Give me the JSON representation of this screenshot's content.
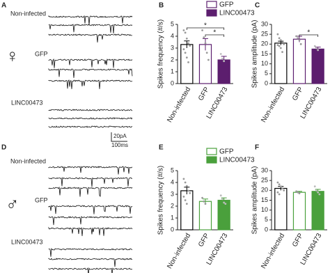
{
  "panels": [
    "A",
    "B",
    "C",
    "D",
    "E",
    "F"
  ],
  "trace_labels": [
    "Non-infected",
    "GFP",
    "LINC00473",
    "Non-infected",
    "GFP",
    "LINC00473"
  ],
  "sex_symbols": [
    "♀",
    "♂"
  ],
  "scale_bar": {
    "y": "20pA",
    "x": "100ms"
  },
  "chart_data": [
    {
      "type": "bar",
      "y_label": "Spikes frequency (#/s)",
      "categories": [
        "Non-infected",
        "GFP",
        "LINC00473"
      ],
      "values": [
        3.3,
        3.3,
        2.0
      ],
      "errors": [
        0.3,
        0.5,
        0.3
      ],
      "points": [
        [
          4.5,
          4.3,
          3.8,
          3.4,
          3.2,
          2.9,
          2.6,
          2.2,
          1.8
        ],
        [
          4.5,
          3.9,
          3.4,
          2.6,
          2.0
        ],
        [
          2.5,
          2.1,
          1.9
        ]
      ],
      "fills": [
        "#ffffff",
        "#ffffff",
        "#5c1e6e"
      ],
      "edges": [
        "#000000",
        "#5c1e6e",
        "#5c1e6e"
      ],
      "legend": [
        {
          "name": "GFP",
          "fill": "#ffffff",
          "edge": "#5c1e6e"
        },
        {
          "name": "LINC00473",
          "fill": "#5c1e6e",
          "edge": "#5c1e6e"
        }
      ],
      "brackets": [
        {
          "label": "*",
          "between": [
            "Non-infected",
            "LINC00473"
          ]
        },
        {
          "label": "*",
          "between": [
            "GFP",
            "LINC00473"
          ]
        }
      ],
      "ylim": [
        0,
        5
      ],
      "yticks": [
        0,
        1,
        2,
        3,
        4,
        5
      ]
    },
    {
      "type": "bar",
      "y_label": "Spikes amplitude (pA)",
      "categories": [
        "Non-infected",
        "GFP",
        "LINC00473"
      ],
      "values": [
        20.5,
        22.5,
        17.5
      ],
      "errors": [
        1,
        1.5,
        1
      ],
      "points": [
        [
          25,
          23,
          22,
          21,
          20,
          19.5,
          19,
          18,
          16
        ],
        [
          24,
          23,
          22,
          20
        ],
        [
          19,
          18,
          17
        ]
      ],
      "fills": [
        "#ffffff",
        "#ffffff",
        "#5c1e6e"
      ],
      "edges": [
        "#000000",
        "#5c1e6e",
        "#5c1e6e"
      ],
      "brackets": [
        {
          "label": "*",
          "between": [
            "GFP",
            "LINC00473"
          ]
        }
      ],
      "ylim": [
        0,
        30
      ],
      "yticks": [
        0,
        5,
        10,
        15,
        20,
        25,
        30
      ]
    },
    {
      "type": "bar",
      "y_label": "Spikes frequency (#/s)",
      "categories": [
        "Non-infected",
        "GFP",
        "LINC00473"
      ],
      "values": [
        3.3,
        2.4,
        2.5
      ],
      "errors": [
        0.3,
        0.2,
        0.2
      ],
      "points": [
        [
          4.3,
          4.0,
          3.7,
          3.3,
          3.1,
          2.8,
          2.5,
          2.2
        ],
        [
          2.7,
          2.4,
          2.2
        ],
        [
          2.9,
          2.6,
          2.3,
          2.2
        ]
      ],
      "fills": [
        "#ffffff",
        "#ffffff",
        "#4aa03c"
      ],
      "edges": [
        "#000000",
        "#4aa03c",
        "#4aa03c"
      ],
      "legend": [
        {
          "name": "GFP",
          "fill": "#ffffff",
          "edge": "#4aa03c"
        },
        {
          "name": "LINC00473",
          "fill": "#4aa03c",
          "edge": "#4aa03c"
        }
      ],
      "ylim": [
        0,
        5
      ],
      "yticks": [
        0,
        1,
        2,
        3,
        4,
        5
      ]
    },
    {
      "type": "bar",
      "y_label": "Spikes amplitude (pA)",
      "categories": [
        "Non-infected",
        "GFP",
        "LINC00473"
      ],
      "values": [
        21,
        19,
        19.5
      ],
      "errors": [
        1,
        0.5,
        1
      ],
      "points": [
        [
          24,
          23,
          22,
          21,
          20,
          19,
          18
        ],
        [
          19.5,
          19,
          18.5
        ],
        [
          22,
          20,
          19,
          18
        ]
      ],
      "fills": [
        "#ffffff",
        "#ffffff",
        "#4aa03c"
      ],
      "edges": [
        "#000000",
        "#4aa03c",
        "#4aa03c"
      ],
      "ylim": [
        0,
        30
      ],
      "yticks": [
        0,
        5,
        10,
        15,
        20,
        25,
        30
      ]
    }
  ]
}
